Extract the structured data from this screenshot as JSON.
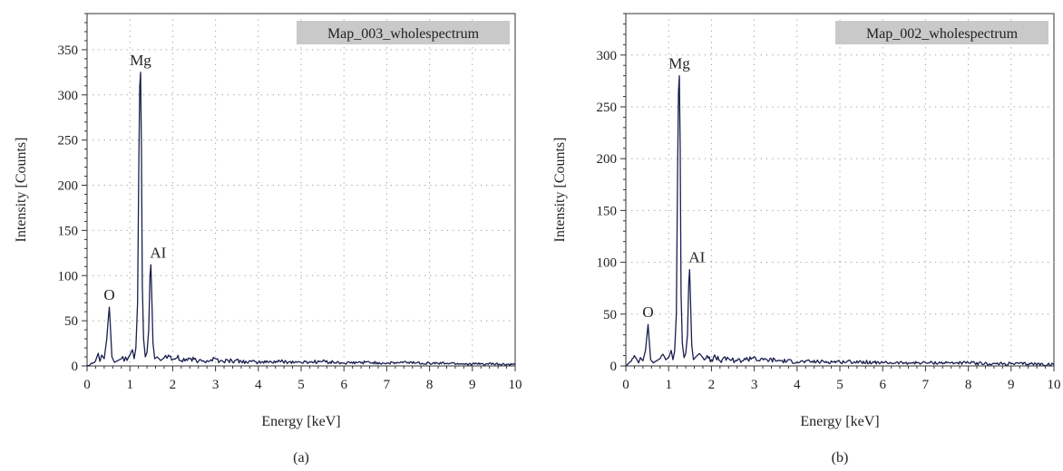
{
  "chart_data": [
    {
      "type": "line",
      "panel_label": "(a)",
      "legend": "Map_003_wholespectrum",
      "xlabel": "Energy [keV]",
      "ylabel": "Intensity [Counts]",
      "xlim": [
        0,
        10
      ],
      "ylim": [
        0,
        390
      ],
      "xticks": [
        0,
        1,
        2,
        3,
        4,
        5,
        6,
        7,
        8,
        9,
        10
      ],
      "yticks": [
        0,
        50,
        100,
        150,
        200,
        250,
        300,
        350
      ],
      "grid": "dotted",
      "legend_position": "top-right",
      "color": "#1a1f4e",
      "peaks": [
        {
          "label": "O",
          "x": 0.52,
          "y": 65
        },
        {
          "label": "Mg",
          "x": 1.25,
          "y": 325
        },
        {
          "label": "AI",
          "x": 1.49,
          "y": 112
        }
      ],
      "series": [
        {
          "x": [
            0.0,
            0.1,
            0.2,
            0.26,
            0.3,
            0.34,
            0.4,
            0.46,
            0.5,
            0.52,
            0.54,
            0.58,
            0.64,
            0.72,
            0.8,
            0.9,
            1.0,
            1.06,
            1.1,
            1.14,
            1.18,
            1.21,
            1.23,
            1.25,
            1.27,
            1.29,
            1.32,
            1.36,
            1.4,
            1.44,
            1.47,
            1.49,
            1.51,
            1.54,
            1.58,
            1.64,
            1.72,
            1.8,
            1.9,
            2.0,
            2.1,
            2.2,
            2.4,
            2.6,
            2.8,
            3.0,
            3.1,
            3.3,
            3.6,
            4.0,
            4.5,
            5.0,
            5.5,
            6.0,
            6.5,
            7.0,
            7.5,
            8.0,
            8.5,
            9.0,
            9.5,
            10.0
          ],
          "y": [
            0,
            3,
            6,
            14,
            5,
            12,
            8,
            30,
            55,
            65,
            48,
            10,
            4,
            6,
            8,
            10,
            12,
            18,
            8,
            20,
            70,
            230,
            310,
            325,
            240,
            90,
            30,
            10,
            15,
            40,
            100,
            112,
            80,
            25,
            8,
            10,
            6,
            9,
            12,
            7,
            9,
            6,
            8,
            5,
            6,
            8,
            5,
            6,
            5,
            4,
            5,
            4,
            5,
            3,
            4,
            3,
            4,
            3,
            3,
            2,
            2,
            1
          ]
        }
      ]
    },
    {
      "type": "line",
      "panel_label": "(b)",
      "legend": "Map_002_wholespectrum",
      "xlabel": "Energy [keV]",
      "ylabel": "Intensity [Counts]",
      "xlim": [
        0,
        10
      ],
      "ylim": [
        0,
        340
      ],
      "xticks": [
        0,
        1,
        2,
        3,
        4,
        5,
        6,
        7,
        8,
        9,
        10
      ],
      "yticks": [
        0,
        50,
        100,
        150,
        200,
        250,
        300
      ],
      "grid": "dotted",
      "legend_position": "top-right",
      "color": "#1a1f4e",
      "peaks": [
        {
          "label": "O",
          "x": 0.52,
          "y": 40
        },
        {
          "label": "Mg",
          "x": 1.25,
          "y": 280
        },
        {
          "label": "AI",
          "x": 1.49,
          "y": 93
        }
      ],
      "series": [
        {
          "x": [
            0.0,
            0.1,
            0.2,
            0.26,
            0.3,
            0.34,
            0.4,
            0.46,
            0.5,
            0.52,
            0.54,
            0.58,
            0.64,
            0.72,
            0.8,
            0.9,
            1.0,
            1.06,
            1.1,
            1.14,
            1.18,
            1.21,
            1.23,
            1.25,
            1.27,
            1.29,
            1.32,
            1.36,
            1.4,
            1.44,
            1.47,
            1.49,
            1.51,
            1.54,
            1.58,
            1.64,
            1.72,
            1.8,
            1.9,
            2.0,
            2.1,
            2.2,
            2.4,
            2.6,
            2.8,
            3.0,
            3.1,
            3.3,
            3.6,
            4.0,
            4.5,
            5.0,
            5.5,
            6.0,
            6.5,
            7.0,
            7.5,
            8.0,
            8.5,
            9.0,
            9.5,
            10.0
          ],
          "y": [
            0,
            4,
            10,
            6,
            3,
            8,
            5,
            15,
            32,
            40,
            28,
            6,
            3,
            5,
            7,
            9,
            8,
            15,
            6,
            14,
            50,
            190,
            265,
            280,
            210,
            70,
            22,
            8,
            12,
            30,
            80,
            93,
            65,
            20,
            6,
            9,
            12,
            8,
            10,
            6,
            8,
            5,
            7,
            5,
            6,
            9,
            5,
            6,
            5,
            4,
            4,
            4,
            4,
            3,
            3,
            3,
            3,
            3,
            2,
            2,
            2,
            1
          ]
        }
      ]
    }
  ]
}
